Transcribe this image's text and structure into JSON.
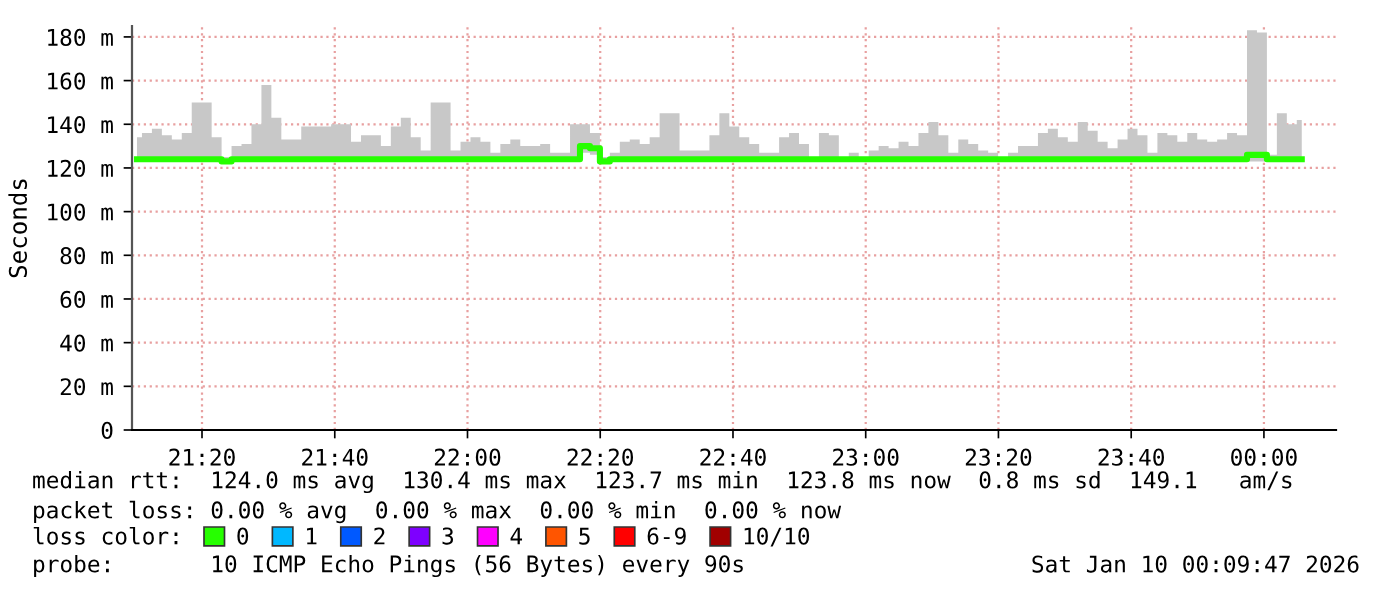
{
  "chart_data": {
    "type": "step",
    "ylabel": "Seconds",
    "legend_title": "loss color:",
    "xlim": [
      21.1575,
      24.181
    ],
    "xticks": [
      {
        "value": 21.3333,
        "label": "21:20"
      },
      {
        "value": 21.6667,
        "label": "21:40"
      },
      {
        "value": 22,
        "label": "22:00"
      },
      {
        "value": 22.3333,
        "label": "22:20"
      },
      {
        "value": 22.6667,
        "label": "22:40"
      },
      {
        "value": 23,
        "label": "23:00"
      },
      {
        "value": 23.3333,
        "label": "23:20"
      },
      {
        "value": 23.6667,
        "label": "23:40"
      },
      {
        "value": 24,
        "label": "00:00"
      }
    ],
    "ylim": [
      0,
      185
    ],
    "yticks": [
      0,
      {
        "value": 20,
        "label": "20 m"
      },
      {
        "value": 40,
        "label": "40 m"
      },
      {
        "value": 60,
        "label": "60 m"
      },
      {
        "value": 80,
        "label": "80 m"
      },
      {
        "value": 100,
        "label": "100 m"
      },
      {
        "value": 120,
        "label": "120 m"
      },
      {
        "value": 140,
        "label": "140 m"
      },
      {
        "value": 160,
        "label": "160 m"
      },
      {
        "value": 180,
        "label": "180 m"
      }
    ],
    "grid": true,
    "legend": "bottom",
    "line_style": "solid",
    "marker": "none",
    "series": [
      {
        "name": "0",
        "color": "#26ff00",
        "x": [
          21.17,
          21.195,
          21.22,
          21.245,
          21.27,
          21.295,
          21.32,
          21.345,
          21.37,
          21.395,
          21.42,
          21.445,
          21.47,
          21.495,
          21.52,
          21.545,
          21.57,
          21.595,
          21.62,
          21.645,
          21.67,
          21.695,
          21.72,
          21.745,
          21.77,
          21.795,
          21.82,
          21.845,
          21.87,
          21.895,
          21.92,
          21.945,
          21.97,
          21.995,
          22.02,
          22.045,
          22.07,
          22.095,
          22.12,
          22.145,
          22.17,
          22.195,
          22.22,
          22.245,
          22.27,
          22.295,
          22.32,
          22.345,
          22.37,
          22.395,
          22.42,
          22.445,
          22.47,
          22.495,
          22.52,
          22.545,
          22.57,
          22.595,
          22.62,
          22.645,
          22.67,
          22.695,
          22.72,
          22.745,
          22.77,
          22.795,
          22.82,
          22.845,
          22.87,
          22.895,
          22.92,
          22.945,
          22.97,
          22.995,
          23.02,
          23.045,
          23.07,
          23.095,
          23.12,
          23.145,
          23.17,
          23.195,
          23.22,
          23.245,
          23.27,
          23.295,
          23.32,
          23.345,
          23.37,
          23.395,
          23.42,
          23.445,
          23.47,
          23.495,
          23.52,
          23.545,
          23.57,
          23.595,
          23.62,
          23.645,
          23.67,
          23.695,
          23.72,
          23.745,
          23.77,
          23.795,
          23.82,
          23.845,
          23.87,
          23.895,
          23.92,
          23.945,
          23.97,
          23.995,
          24.02,
          24.045,
          24.07,
          24.095
        ],
        "values": [
          124,
          124,
          124,
          124,
          124,
          124,
          124,
          124,
          124,
          123,
          124,
          124,
          124,
          124,
          124,
          124,
          124,
          124,
          124,
          124,
          124,
          124,
          124,
          124,
          124,
          124,
          124,
          124,
          124,
          124,
          124,
          124,
          124,
          124,
          124,
          124,
          124,
          124,
          124,
          124,
          124,
          124,
          124,
          124,
          124,
          130,
          129,
          123,
          124,
          124,
          124,
          124,
          124,
          124,
          124,
          124,
          124,
          124,
          124,
          124,
          124,
          124,
          124,
          124,
          124,
          124,
          124,
          124,
          124,
          124,
          124,
          124,
          124,
          124,
          124,
          124,
          124,
          124,
          124,
          124,
          124,
          124,
          124,
          124,
          124,
          124,
          124,
          124,
          124,
          124,
          124,
          124,
          124,
          124,
          124,
          124,
          124,
          124,
          124,
          124,
          124,
          124,
          124,
          124,
          124,
          124,
          124,
          124,
          124,
          124,
          124,
          124,
          126,
          126,
          124,
          124,
          124,
          124
        ],
        "lower": [
          123,
          123,
          123,
          123,
          123,
          123,
          123,
          123,
          123,
          123,
          123,
          123,
          123,
          123,
          123,
          123,
          123,
          123,
          123,
          123,
          123,
          123,
          123,
          123,
          123,
          123,
          123,
          123,
          123,
          123,
          123,
          123,
          123,
          123,
          123,
          123,
          123,
          123,
          123,
          123,
          123,
          123,
          123,
          123,
          123,
          127,
          126,
          123,
          123,
          123,
          123,
          123,
          123,
          123,
          123,
          123,
          123,
          123,
          123,
          123,
          123,
          123,
          123,
          123,
          123,
          123,
          123,
          123,
          123,
          123,
          123,
          123,
          123,
          123,
          123,
          123,
          123,
          123,
          123,
          123,
          123,
          123,
          123,
          123,
          123,
          123,
          123,
          123,
          123,
          123,
          123,
          123,
          123,
          123,
          123,
          123,
          123,
          123,
          123,
          123,
          123,
          123,
          123,
          123,
          123,
          123,
          123,
          123,
          123,
          123,
          123,
          123,
          123,
          123,
          123,
          123,
          123,
          123
        ],
        "upper": [
          134,
          136,
          138,
          135,
          133,
          136,
          150,
          150,
          134,
          125,
          130,
          131,
          140,
          158,
          143,
          133,
          133,
          139,
          139,
          139,
          140,
          140,
          132,
          135,
          135,
          130,
          139,
          143,
          134,
          128,
          150,
          150,
          128,
          132,
          134,
          132,
          127,
          131,
          133,
          130,
          130,
          131,
          127,
          127,
          140,
          140,
          136,
          125,
          127,
          132,
          133,
          131,
          134,
          145,
          145,
          128,
          128,
          128,
          135,
          145,
          139,
          134,
          131,
          127,
          127,
          134,
          136,
          131,
          125,
          136,
          135,
          125,
          127,
          125,
          128,
          130,
          129,
          132,
          130,
          136,
          141,
          135,
          127,
          133,
          131,
          128,
          127,
          125,
          127,
          130,
          130,
          136,
          138,
          134,
          132,
          141,
          137,
          132,
          129,
          133,
          138,
          135,
          127,
          136,
          135,
          132,
          136,
          133,
          132,
          133,
          136,
          135,
          183,
          182,
          126,
          145,
          140,
          142
        ]
      },
      {
        "name": "1",
        "color": "#00b8ff"
      },
      {
        "name": "2",
        "color": "#0059ff"
      },
      {
        "name": "3",
        "color": "#7e00ff"
      },
      {
        "name": "4",
        "color": "#ff00ff"
      },
      {
        "name": "5",
        "color": "#ff5500"
      },
      {
        "name": "6-9",
        "color": "#ff0000"
      },
      {
        "name": "10/10",
        "color": "#a10000"
      }
    ],
    "annotations": [
      "median rtt:  124.0 ms avg  130.4 ms max  123.7 ms min  123.8 ms now  0.8 ms sd  149.1   am/s",
      "packet loss: 0.00 % avg  0.00 % max  0.00 % min  0.00 % now",
      "probe:       10 ICMP Echo Pings (56 Bytes) every 90s",
      "Sat Jan 10 00:09:47 2026"
    ]
  }
}
